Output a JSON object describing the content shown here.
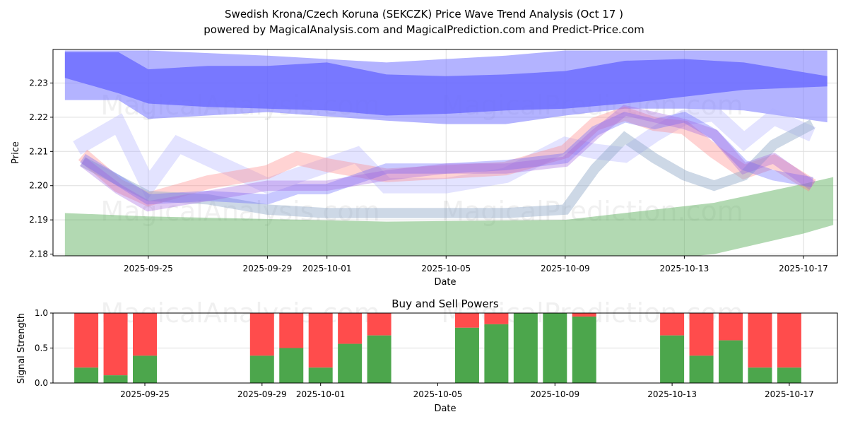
{
  "title_line1": "Swedish Krona/Czech Koruna (SEKCZK) Price Wave Trend Analysis (Oct 17 )",
  "title_line2": "powered by MagicalAnalysis.com and MagicalPrediction.com and Predict-Price.com",
  "watermarks": [
    "MagicalAnalysis.com",
    "MagicalPrediction.com"
  ],
  "chart_data": [
    {
      "type": "area",
      "title": "Swedish Krona/Czech Koruna (SEKCZK) Price Wave Trend Analysis (Oct 17 )",
      "xlabel": "Date",
      "ylabel": "Price",
      "x_origin": "2025-09-25",
      "xlim_days": [
        -3.2,
        23.14
      ],
      "ylim": [
        2.1795,
        2.2398
      ],
      "x_ticks": [
        {
          "d": 0,
          "label": "2025-09-25"
        },
        {
          "d": 4,
          "label": "2025-09-29"
        },
        {
          "d": 6,
          "label": "2025-10-01"
        },
        {
          "d": 10,
          "label": "2025-10-05"
        },
        {
          "d": 14,
          "label": "2025-10-09"
        },
        {
          "d": 18,
          "label": "2025-10-13"
        },
        {
          "d": 22,
          "label": "2025-10-17"
        }
      ],
      "y_ticks": [
        {
          "v": 2.18,
          "label": "2.18"
        },
        {
          "v": 2.19,
          "label": "2.19"
        },
        {
          "v": 2.2,
          "label": "2.20"
        },
        {
          "v": 2.21,
          "label": "2.21"
        },
        {
          "v": 2.22,
          "label": "2.22"
        },
        {
          "v": 2.23,
          "label": "2.23"
        }
      ],
      "grid": true,
      "bands": [
        {
          "name": "upper-wave-light",
          "color": "#8080ff",
          "opacity": 0.6,
          "x": [
            -2.8,
            -1,
            0,
            4,
            8,
            10,
            12,
            14,
            16,
            18,
            20,
            22.8
          ],
          "upper": [
            2.2395,
            2.2395,
            2.2395,
            2.238,
            2.236,
            2.237,
            2.238,
            2.2395,
            2.2395,
            2.2395,
            2.2395,
            2.2395
          ],
          "lower": [
            2.225,
            2.225,
            2.2195,
            2.2215,
            2.219,
            2.218,
            2.218,
            2.2205,
            2.2225,
            2.2225,
            2.222,
            2.2185
          ]
        },
        {
          "name": "upper-wave-dark",
          "color": "#6060ff",
          "opacity": 0.7,
          "x": [
            -2.8,
            -1,
            0,
            2,
            4,
            6,
            8,
            10,
            12,
            14,
            16,
            18,
            20,
            22.8
          ],
          "upper": [
            2.239,
            2.239,
            2.234,
            2.235,
            2.235,
            2.236,
            2.2325,
            2.232,
            2.2325,
            2.2335,
            2.2365,
            2.237,
            2.236,
            2.232
          ],
          "lower": [
            2.2315,
            2.227,
            2.224,
            2.223,
            2.2225,
            2.222,
            2.2205,
            2.221,
            2.222,
            2.2225,
            2.224,
            2.226,
            2.228,
            2.229
          ]
        },
        {
          "name": "lower-wave-green",
          "color": "#66b366",
          "opacity": 0.5,
          "x": [
            -2.8,
            0,
            8,
            14,
            19,
            22,
            23
          ],
          "upper": [
            2.192,
            2.191,
            2.1895,
            2.19,
            2.195,
            2.2005,
            2.2025
          ],
          "lower": [
            2.175,
            2.176,
            2.176,
            2.176,
            2.18,
            2.186,
            2.1885
          ]
        }
      ],
      "lines": [
        {
          "name": "lavender-wave",
          "color": "#b0b0ff",
          "opacity": 0.35,
          "width": 0.0045,
          "x": [
            -2.4,
            -1,
            0,
            1,
            4,
            7,
            8,
            10,
            12,
            14,
            15,
            16,
            17,
            18,
            19,
            20,
            21,
            22.3
          ],
          "y": [
            2.211,
            2.218,
            2.2,
            2.212,
            2.2,
            2.209,
            2.2,
            2.2,
            2.203,
            2.212,
            2.21,
            2.209,
            2.215,
            2.22,
            2.221,
            2.213,
            2.22,
            2.215
          ]
        },
        {
          "name": "red-wave",
          "color": "#ff8080",
          "opacity": 0.35,
          "width": 0.004,
          "x": [
            -2.2,
            -1,
            0,
            2,
            4,
            5,
            6,
            8,
            10,
            12,
            14,
            15,
            16,
            17,
            18,
            19,
            20,
            21,
            22.3
          ],
          "y": [
            2.209,
            2.2,
            2.196,
            2.201,
            2.204,
            2.208,
            2.206,
            2.203,
            2.204,
            2.205,
            2.21,
            2.218,
            2.221,
            2.218,
            2.217,
            2.21,
            2.204,
            2.207,
            2.2
          ]
        },
        {
          "name": "gray-green-wave",
          "color": "#90a8c8",
          "opacity": 0.45,
          "width": 0.003,
          "x": [
            -2.2,
            0,
            2,
            4,
            6,
            8,
            10,
            12,
            14,
            15,
            16,
            17,
            18,
            19,
            20,
            21,
            22.3
          ],
          "y": [
            2.207,
            2.197,
            2.196,
            2.193,
            2.192,
            2.192,
            2.192,
            2.192,
            2.193,
            2.205,
            2.214,
            2.208,
            2.203,
            2.2,
            2.203,
            2.212,
            2.218
          ]
        },
        {
          "name": "blue-wave",
          "color": "#6060ff",
          "opacity": 0.35,
          "width": 0.003,
          "x": [
            -2.2,
            0,
            2,
            4,
            5,
            6,
            8,
            10,
            12,
            14,
            15,
            16,
            17,
            18,
            19,
            20,
            21,
            22.3
          ],
          "y": [
            2.208,
            2.196,
            2.197,
            2.196,
            2.199,
            2.199,
            2.205,
            2.205,
            2.206,
            2.208,
            2.216,
            2.22,
            2.218,
            2.22,
            2.215,
            2.206,
            2.203,
            2.201
          ]
        },
        {
          "name": "purple-wave",
          "color": "#a060e0",
          "opacity": 0.35,
          "width": 0.003,
          "x": [
            -2.2,
            -1,
            0,
            2,
            4,
            6,
            8,
            10,
            12,
            14,
            15,
            16,
            17,
            18,
            19,
            20,
            21,
            22.3
          ],
          "y": [
            2.207,
            2.199,
            2.194,
            2.197,
            2.2,
            2.2,
            2.203,
            2.205,
            2.205,
            2.207,
            2.215,
            2.222,
            2.22,
            2.218,
            2.215,
            2.205,
            2.208,
            2.2
          ]
        }
      ]
    },
    {
      "type": "bar",
      "title": "Buy and Sell Powers",
      "xlabel": "Date",
      "ylabel": "Signal Strength",
      "ylim": [
        0,
        1
      ],
      "y_ticks": [
        {
          "v": 0,
          "label": "0.0"
        },
        {
          "v": 0.5,
          "label": "0.5"
        },
        {
          "v": 1,
          "label": "1.0"
        }
      ],
      "x_ticks": [
        {
          "d": 0,
          "label": "2025-09-25"
        },
        {
          "d": 4,
          "label": "2025-09-29"
        },
        {
          "d": 6,
          "label": "2025-10-01"
        },
        {
          "d": 10,
          "label": "2025-10-05"
        },
        {
          "d": 14,
          "label": "2025-10-09"
        },
        {
          "d": 18,
          "label": "2025-10-13"
        },
        {
          "d": 22,
          "label": "2025-10-17"
        }
      ],
      "buy_color": "#4ca64c",
      "sell_color": "#ff4c4c",
      "days": [
        -2,
        -1,
        0,
        4,
        5,
        6,
        7,
        8,
        11,
        12,
        13,
        14,
        15,
        18,
        19,
        20,
        21,
        22
      ],
      "buy": [
        0.22,
        0.11,
        0.39,
        0.39,
        0.5,
        0.22,
        0.56,
        0.68,
        0.79,
        0.84,
        1.0,
        1.0,
        0.95,
        0.68,
        0.39,
        0.61,
        0.22,
        0.22
      ]
    }
  ]
}
